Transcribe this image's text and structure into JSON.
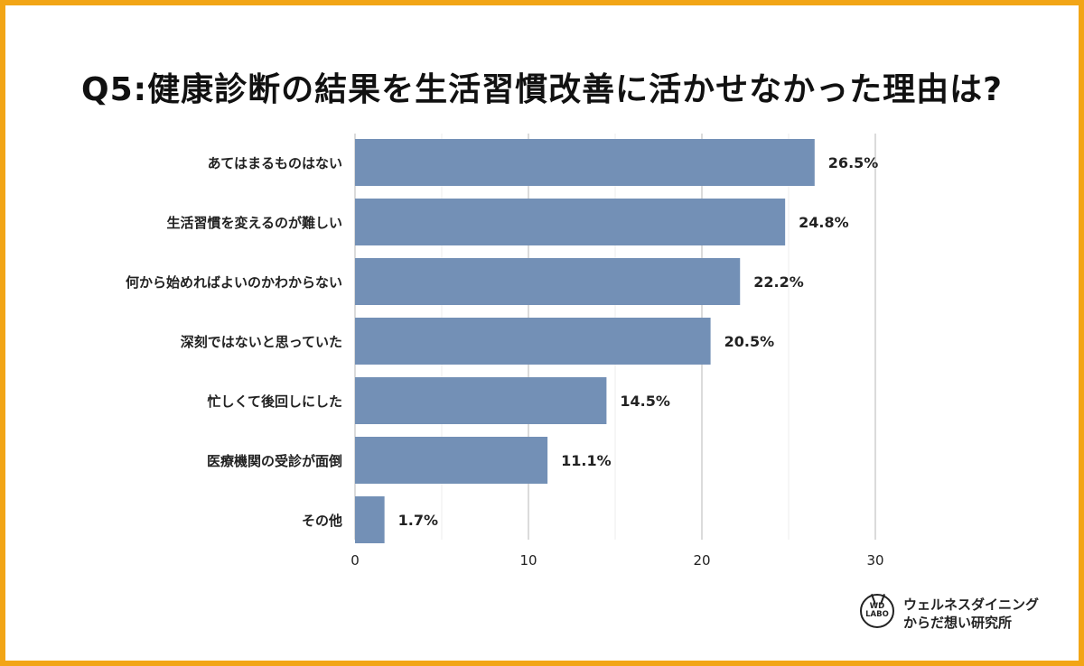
{
  "title": "Q5:健康診断の結果を生活習慣改善に活かせなかった理由は?",
  "chart_data": {
    "type": "bar",
    "orientation": "horizontal",
    "categories": [
      "あてはまるものはない",
      "生活習慣を変えるのが難しい",
      "何から始めればよいのかわからない",
      "深刻ではないと思っていた",
      "忙しくて後回しにした",
      "医療機関の受診が面倒",
      "その他"
    ],
    "values": [
      26.5,
      24.8,
      22.2,
      20.5,
      14.5,
      11.1,
      1.7
    ],
    "value_labels": [
      "26.5%",
      "24.8%",
      "22.2%",
      "20.5%",
      "14.5%",
      "11.1%",
      "1.7%"
    ],
    "xlim": [
      0,
      30
    ],
    "x_ticks": [
      "0",
      "10",
      "20",
      "30"
    ],
    "grid": true,
    "bar_color": "#7390b6",
    "grid_color": "#cfcfcf"
  },
  "logo": {
    "mark_line1": "WD",
    "mark_line2": "LABO",
    "line1": "ウェルネスダイニング",
    "line2": "からだ想い研究所"
  },
  "colors": {
    "border": "#f2a516"
  }
}
